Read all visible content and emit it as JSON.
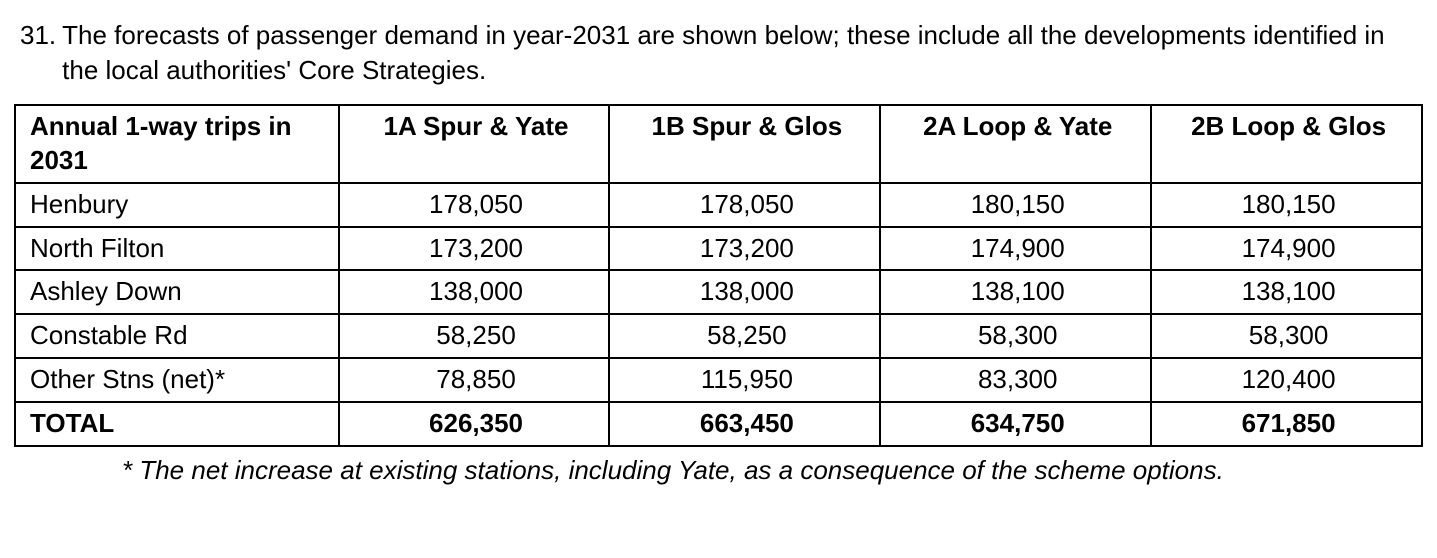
{
  "paragraph": {
    "number": "31.",
    "text": "The forecasts of passenger demand in year-2031 are shown below; these include all the developments identified in the local authorities' Core Strategies."
  },
  "table": {
    "type": "table",
    "border_color": "#000000",
    "background_color": "#ffffff",
    "text_color": "#000000",
    "font_family": "Arial",
    "header_fontsize_pt": 20,
    "body_fontsize_pt": 20,
    "header_fontweight": "bold",
    "total_row_fontweight": "bold",
    "column_widths_percent": [
      23,
      19.25,
      19.25,
      19.25,
      19.25
    ],
    "column_alignments": [
      "left",
      "center",
      "center",
      "center",
      "center"
    ],
    "columns": [
      "Annual 1-way trips in 2031",
      "1A Spur & Yate",
      "1B Spur & Glos",
      "2A Loop & Yate",
      "2B Loop & Glos"
    ],
    "rows": [
      {
        "label": "Henbury",
        "values": [
          "178,050",
          "178,050",
          "180,150",
          "180,150"
        ]
      },
      {
        "label": "North Filton",
        "values": [
          "173,200",
          "173,200",
          "174,900",
          "174,900"
        ]
      },
      {
        "label": "Ashley Down",
        "values": [
          "138,000",
          "138,000",
          "138,100",
          "138,100"
        ]
      },
      {
        "label": "Constable Rd",
        "values": [
          "58,250",
          "58,250",
          "58,300",
          "58,300"
        ]
      },
      {
        "label": "Other Stns (net)*",
        "values": [
          "78,850",
          "115,950",
          "83,300",
          "120,400"
        ]
      }
    ],
    "total": {
      "label": "TOTAL",
      "values": [
        "626,350",
        "663,450",
        "634,750",
        "671,850"
      ]
    }
  },
  "footnote": "* The net increase at existing stations, including Yate, as a consequence of the scheme options."
}
